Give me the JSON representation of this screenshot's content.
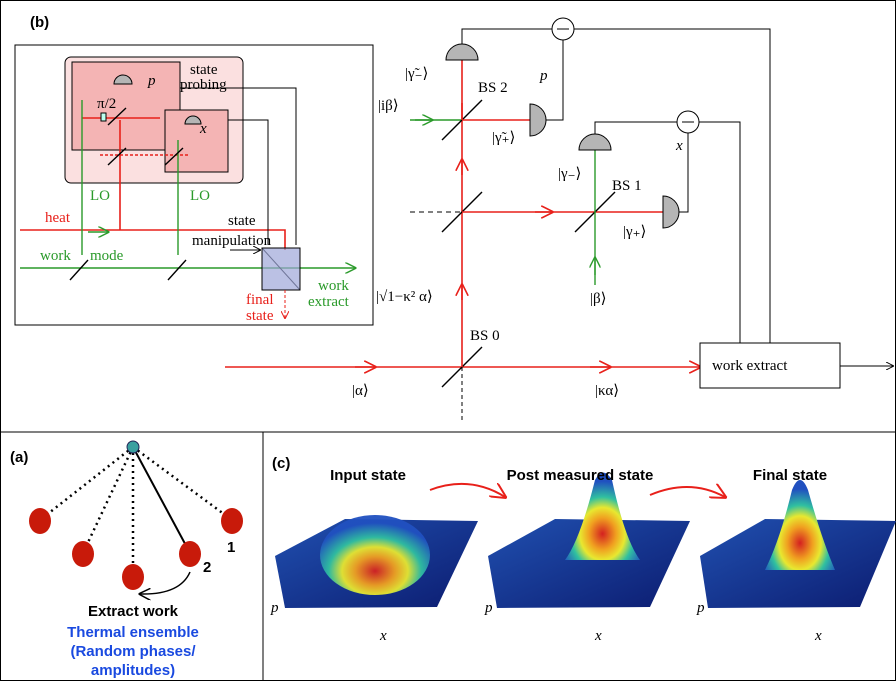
{
  "panel_b": {
    "label": "(b)",
    "p": "p",
    "gt_minus": "|γ̃₋⟩",
    "bs2": "BS 2",
    "ibeta": "|iβ⟩",
    "gt_plus": "|γ̃₊⟩",
    "x": "x",
    "g_minus": "|γ₋⟩",
    "bs1": "BS 1",
    "g_plus": "|γ₊⟩",
    "beta": "|β⟩",
    "sqrt_alpha": "|√1−κ² α⟩",
    "bs0": "BS 0",
    "work_extract": "work extract",
    "alpha": "|α⟩",
    "kappa_alpha": "|κα⟩",
    "inset": {
      "pi2": "π/2",
      "p": "p",
      "state_probing": [
        "state",
        "probing"
      ],
      "x": "x",
      "lo1": "LO",
      "lo2": "LO",
      "heat": "heat",
      "work": "work",
      "mode": "mode",
      "state_manipulation": [
        "state",
        "manipulation"
      ],
      "work_extract": [
        "work",
        "extract"
      ],
      "final_state": [
        "final",
        "state"
      ]
    }
  },
  "panel_a": {
    "label": "(a)",
    "one": "1",
    "two": "2",
    "extract_work": "Extract work",
    "ensemble": [
      "Thermal ensemble",
      "(Random phases/",
      "amplitudes)"
    ]
  },
  "panel_c": {
    "label": "(c)",
    "titles": [
      "Input state",
      "Post measured state",
      "Final state"
    ],
    "p": "p",
    "x": "x"
  }
}
